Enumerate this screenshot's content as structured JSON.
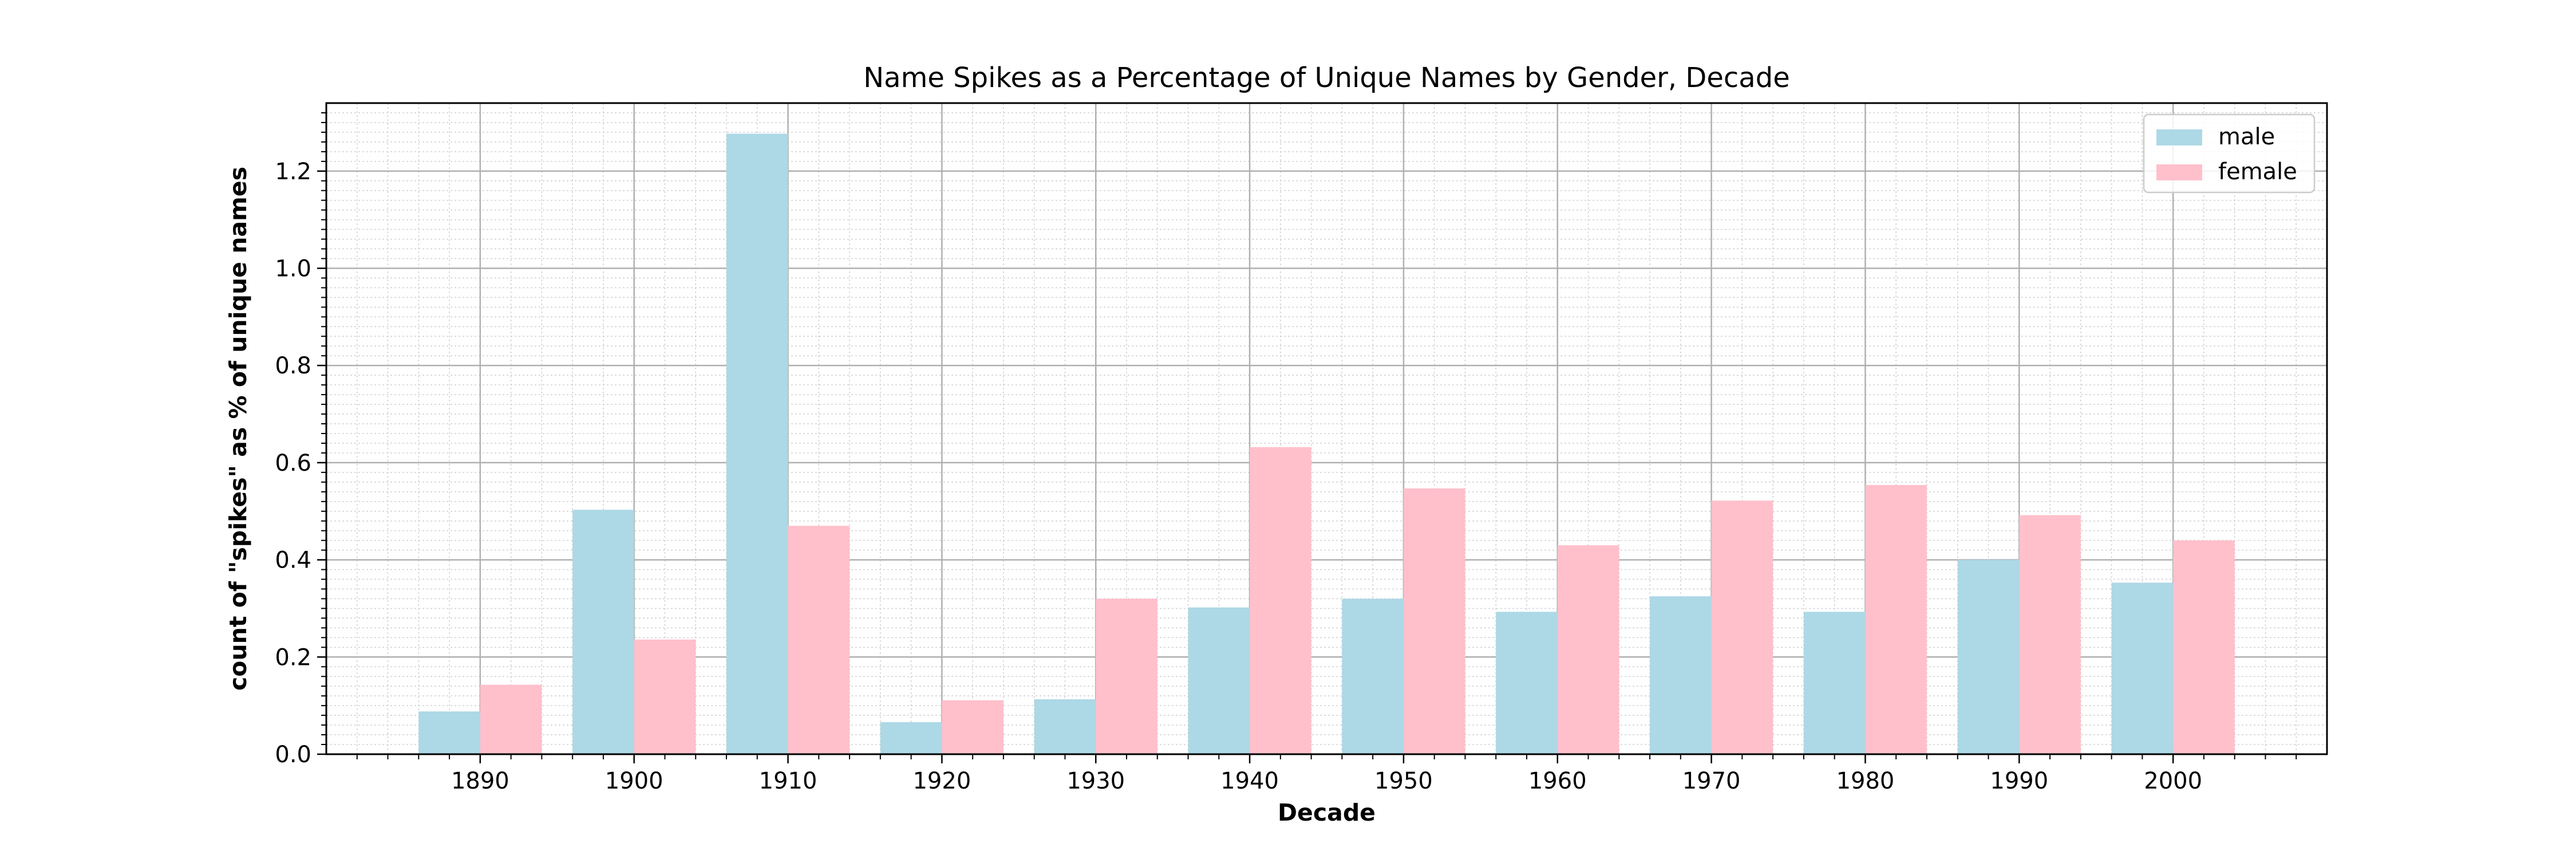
{
  "chart_data": {
    "type": "bar",
    "title": "Name Spikes as a Percentage of Unique Names by Gender, Decade",
    "xlabel": "Decade",
    "ylabel": "count of \"spikes\" as % of unique names",
    "categories": [
      "1890",
      "1900",
      "1910",
      "1920",
      "1930",
      "1940",
      "1950",
      "1960",
      "1970",
      "1980",
      "1990",
      "2000"
    ],
    "series": [
      {
        "name": "male",
        "color": "#add8e6",
        "values": [
          0.088,
          0.503,
          1.277,
          0.066,
          0.113,
          0.302,
          0.32,
          0.293,
          0.325,
          0.293,
          0.4,
          0.353
        ]
      },
      {
        "name": "female",
        "color": "#ffc0cb",
        "values": [
          0.143,
          0.236,
          0.47,
          0.111,
          0.32,
          0.632,
          0.547,
          0.43,
          0.522,
          0.554,
          0.492,
          0.44
        ]
      }
    ],
    "yticks": [
      "0.0",
      "0.2",
      "0.4",
      "0.6",
      "0.8",
      "1.0",
      "1.2"
    ],
    "ylim": [
      0,
      1.34
    ],
    "xlim": [
      1880,
      2010
    ],
    "grid": true,
    "legend_position": "top-right"
  }
}
